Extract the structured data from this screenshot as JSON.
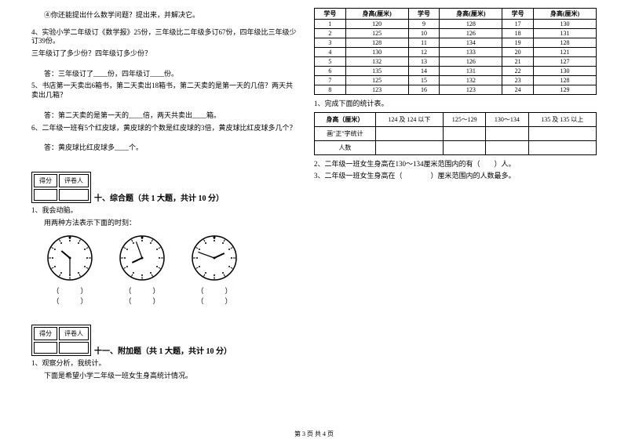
{
  "left": {
    "q_sub4": "④你还能提出什么数学问题？提出来，并解决它。",
    "q4_line1": "4、实验小学二年级订《数学报》25份，三年级比二年级多订67份，四年级比三年级少订39份。",
    "q4_line2": "三年级订了多少份？四年级订多少份？",
    "q4_ans": "答：三年级订了____份，四年级订____份。",
    "q5_line1": "5、书店第一天卖出6箱书，第二天卖出18箱书，第二天卖的是第一天的几倍？两天共卖出几箱？",
    "q5_ans": "答：第二天卖的是第一天的____倍，两天共卖出____箱。",
    "q6_line1": "6、二年级一班有5个红皮球，黄皮球的个数是红皮球的3倍，黄皮球比红皮球多几个？",
    "q6_ans": "答：黄皮球比红皮球多____个。",
    "score_label1": "得分",
    "score_label2": "评卷人",
    "section10": "十、综合题（共 1 大题，共计 10 分）",
    "s10_q1": "1、我会动脑。",
    "s10_q1_sub": "用两种方法表示下面的时刻：",
    "paren_open": "（",
    "paren_close": "）",
    "section11": "十一、附加题（共 1 大题，共计 10 分）",
    "s11_q1": "1、观察分析，我统计。",
    "s11_q1_sub": "下面是希望小学二年级一班女生身高统计情况。",
    "clocks": [
      {
        "hour_angle": -50,
        "minute_angle": 180
      },
      {
        "hour_angle": -115,
        "minute_angle": -20
      },
      {
        "hour_angle": 65,
        "minute_angle": -70
      }
    ]
  },
  "right": {
    "height_table": {
      "headers": [
        "学号",
        "身高(厘米)",
        "学号",
        "身高(厘米)",
        "学号",
        "身高(厘米)"
      ],
      "rows": [
        [
          "1",
          "120",
          "9",
          "128",
          "17",
          "130"
        ],
        [
          "2",
          "125",
          "10",
          "126",
          "18",
          "131"
        ],
        [
          "3",
          "128",
          "11",
          "134",
          "19",
          "128"
        ],
        [
          "4",
          "130",
          "12",
          "133",
          "20",
          "121"
        ],
        [
          "5",
          "132",
          "13",
          "126",
          "21",
          "127"
        ],
        [
          "6",
          "135",
          "14",
          "131",
          "22",
          "130"
        ],
        [
          "7",
          "125",
          "15",
          "132",
          "23",
          "128"
        ],
        [
          "8",
          "123",
          "16",
          "123",
          "24",
          "129"
        ]
      ]
    },
    "r_q1": "1、完成下面的统计表。",
    "stat_table": {
      "r1": [
        "身高（厘米）",
        "124 及 124 以下",
        "125～129",
        "130～134",
        "135 及 135 以上"
      ],
      "r2_label": "画\"正\"字统计",
      "r3_label": "人数"
    },
    "r_q2": "2、二年级一班女生身高在130～134厘米范围内的有（　　）人。",
    "r_q3": "3、二年级一班女生身高在（　　　　）厘米范围内的人数最多。"
  },
  "footer": "第 3 页 共 4 页"
}
